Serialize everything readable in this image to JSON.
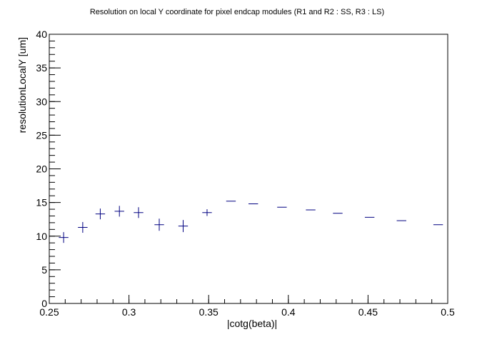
{
  "chart_data": {
    "type": "scatter",
    "title": "Resolution on local Y coordinate for pixel endcap modules (R1 and R2 : SS, R3 : LS)",
    "xlabel": "|cotg(beta)|",
    "ylabel": "resolutionLocalY [um]",
    "xlim": [
      0.25,
      0.5
    ],
    "ylim": [
      0,
      40
    ],
    "x_ticks": [
      "0.25",
      "0.3",
      "0.35",
      "0.4",
      "0.45",
      "0.5"
    ],
    "y_ticks": [
      "0",
      "5",
      "10",
      "15",
      "20",
      "25",
      "30",
      "35",
      "40"
    ],
    "grid": false,
    "marker_color": "#000080",
    "series": [
      {
        "points": [
          {
            "x": 0.259,
            "y": 9.8,
            "xerr": 0.003,
            "yerr": 0.8
          },
          {
            "x": 0.271,
            "y": 11.3,
            "xerr": 0.003,
            "yerr": 0.8
          },
          {
            "x": 0.282,
            "y": 13.3,
            "xerr": 0.003,
            "yerr": 0.8
          },
          {
            "x": 0.294,
            "y": 13.7,
            "xerr": 0.003,
            "yerr": 0.8
          },
          {
            "x": 0.306,
            "y": 13.5,
            "xerr": 0.003,
            "yerr": 0.8
          },
          {
            "x": 0.319,
            "y": 11.7,
            "xerr": 0.003,
            "yerr": 0.9
          },
          {
            "x": 0.334,
            "y": 11.5,
            "xerr": 0.003,
            "yerr": 0.9
          },
          {
            "x": 0.349,
            "y": 13.5,
            "xerr": 0.003,
            "yerr": 0.5
          },
          {
            "x": 0.364,
            "y": 15.2,
            "xerr": 0.003,
            "yerr": 0
          },
          {
            "x": 0.378,
            "y": 14.8,
            "xerr": 0.003,
            "yerr": 0
          },
          {
            "x": 0.396,
            "y": 14.3,
            "xerr": 0.003,
            "yerr": 0
          },
          {
            "x": 0.414,
            "y": 13.9,
            "xerr": 0.003,
            "yerr": 0
          },
          {
            "x": 0.431,
            "y": 13.4,
            "xerr": 0.003,
            "yerr": 0
          },
          {
            "x": 0.451,
            "y": 12.8,
            "xerr": 0.003,
            "yerr": 0
          },
          {
            "x": 0.471,
            "y": 12.3,
            "xerr": 0.003,
            "yerr": 0
          },
          {
            "x": 0.494,
            "y": 11.7,
            "xerr": 0.003,
            "yerr": 0
          }
        ]
      }
    ]
  }
}
